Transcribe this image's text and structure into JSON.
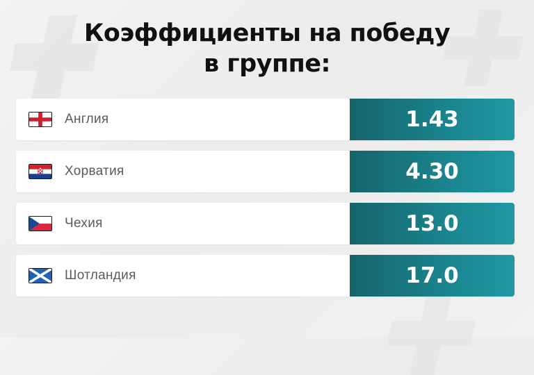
{
  "title": {
    "line1": "Коэффициенты на победу",
    "line2": "в группе:"
  },
  "colors": {
    "odds_gradient_start": "#16646c",
    "odds_gradient_end": "#1f98a2",
    "title_text": "#111111",
    "team_text": "#5a5a5a"
  },
  "teams": [
    {
      "name": "Англия",
      "odds": "1.43",
      "flag_icon": "england-flag-icon"
    },
    {
      "name": "Хорватия",
      "odds": "4.30",
      "flag_icon": "croatia-flag-icon"
    },
    {
      "name": "Чехия",
      "odds": "13.0",
      "flag_icon": "czech-flag-icon"
    },
    {
      "name": "Шотландия",
      "odds": "17.0",
      "flag_icon": "scotland-flag-icon"
    }
  ]
}
